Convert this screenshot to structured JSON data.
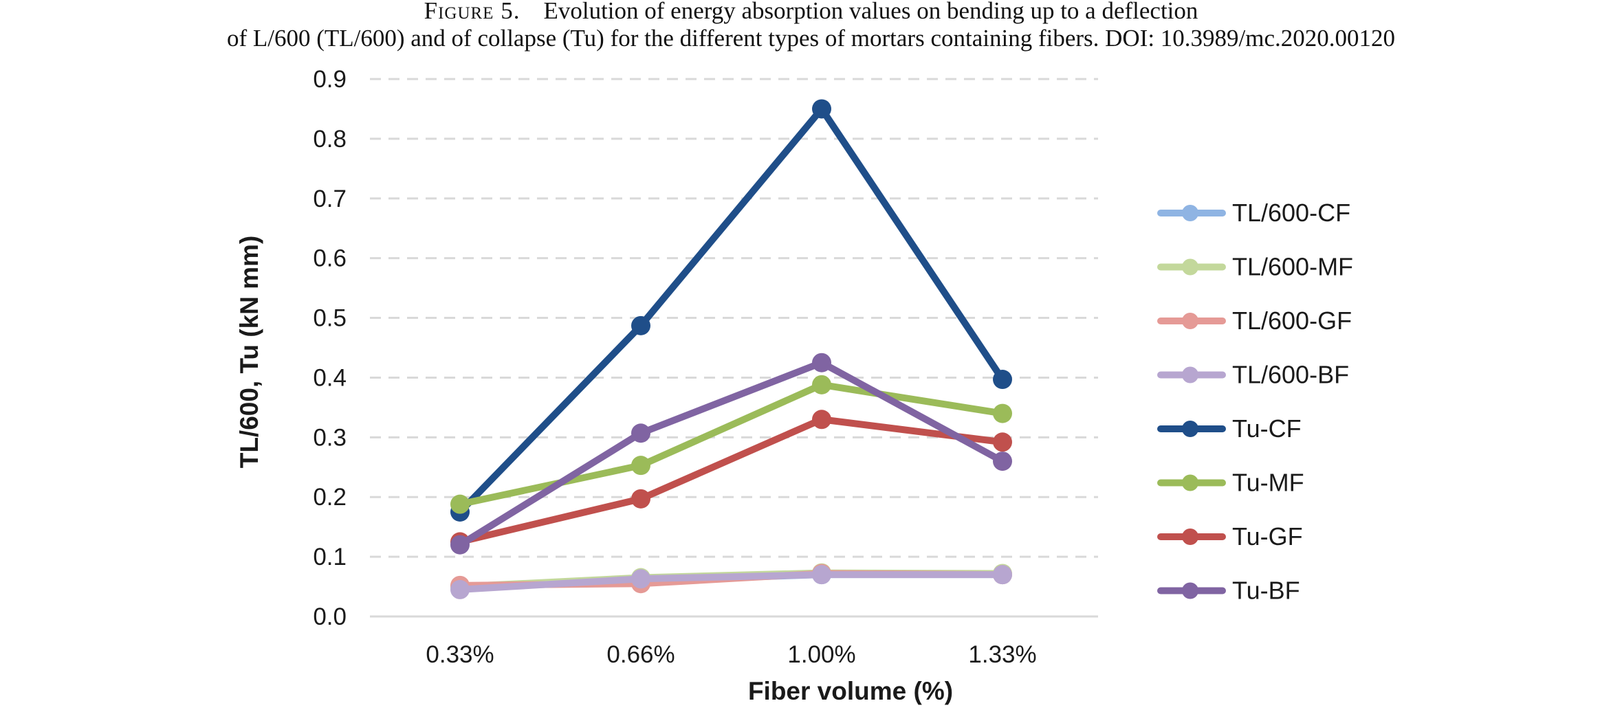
{
  "caption": {
    "figure_label": "Figure 5.",
    "line1": "Evolution of energy absorption values on bending up to a deflection",
    "line2": "of L/600 (TL/600) and of collapse (Tu) for the different types of mortars containing fibers. DOI: 10.3989/mc.2020.00120"
  },
  "chart_data": {
    "type": "line",
    "categories": [
      "0.33%",
      "0.66%",
      "1.00%",
      "1.33%"
    ],
    "xlabel": "Fiber volume (%)",
    "ylabel": "TL/600, Tu (kN mm)",
    "ylim": [
      0,
      0.9
    ],
    "yticks": [
      "0.0",
      "0.1",
      "0.2",
      "0.3",
      "0.4",
      "0.5",
      "0.6",
      "0.7",
      "0.8",
      "0.9"
    ],
    "grid": "horizontal dashed",
    "legend_position": "right",
    "series": [
      {
        "name": "TL/600-CF",
        "color": "#8fb4e3",
        "values": [
          0.05,
          0.06,
          0.07,
          0.07
        ]
      },
      {
        "name": "TL/600-MF",
        "color": "#c3d89b",
        "values": [
          0.05,
          0.065,
          0.073,
          0.072
        ]
      },
      {
        "name": "TL/600-GF",
        "color": "#e59a96",
        "values": [
          0.052,
          0.055,
          0.072,
          0.07
        ]
      },
      {
        "name": "TL/600-BF",
        "color": "#b7a6d0",
        "values": [
          0.045,
          0.063,
          0.07,
          0.07
        ]
      },
      {
        "name": "Tu-CF",
        "color": "#1f4e89",
        "values": [
          0.175,
          0.487,
          0.85,
          0.397
        ]
      },
      {
        "name": "Tu-MF",
        "color": "#9bbb59",
        "values": [
          0.188,
          0.253,
          0.388,
          0.34
        ]
      },
      {
        "name": "Tu-GF",
        "color": "#c0504d",
        "values": [
          0.125,
          0.197,
          0.33,
          0.292
        ]
      },
      {
        "name": "Tu-BF",
        "color": "#8064a2",
        "values": [
          0.12,
          0.307,
          0.425,
          0.26
        ]
      }
    ]
  }
}
